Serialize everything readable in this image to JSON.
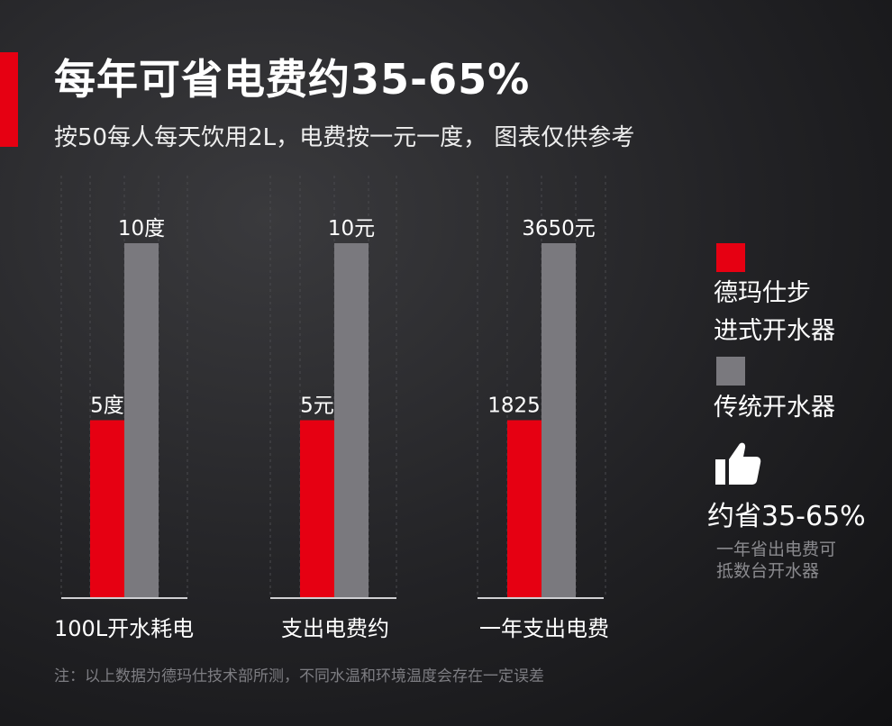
{
  "header": {
    "title": "每年可省电费约35-65%",
    "subtitle": "按50每人每天饮用2L，电费按一元一度， 图表仅供参考"
  },
  "chart_data": {
    "type": "bar",
    "categories": [
      "100L开水耗电",
      "支出电费约",
      "一年支出电费"
    ],
    "series": [
      {
        "name": "德玛仕步进式开水器",
        "color": "#e60012",
        "values": [
          5,
          5,
          1825
        ],
        "labels": [
          "5度",
          "5元",
          "1825元"
        ]
      },
      {
        "name": "传统开水器",
        "color": "#7a797e",
        "values": [
          10,
          10,
          3650
        ],
        "labels": [
          "10度",
          "10元",
          "3650元"
        ]
      }
    ],
    "group_max": [
      10,
      10,
      3650
    ],
    "grid": true
  },
  "legend": {
    "series1_line1": "德玛仕步",
    "series1_line2": "进式开水器",
    "series2": "传统开水器",
    "series1_color": "#e60012",
    "series2_color": "#7a797e"
  },
  "savings": {
    "icon": "thumbs-up-icon",
    "headline": "约省35-65%",
    "note_line1": "一年省出电费可",
    "note_line2": "抵数台开水器"
  },
  "footnote": "注：以上数据为德玛仕技术部所测，不同水温和环境温度会存在一定误差"
}
